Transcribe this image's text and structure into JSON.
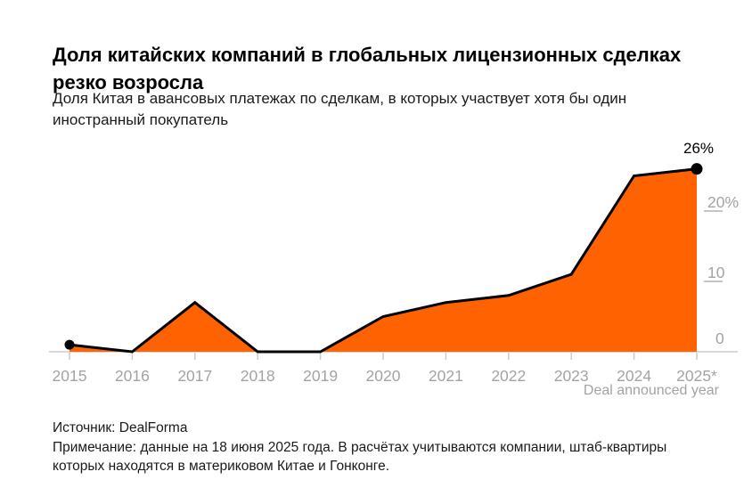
{
  "header": {
    "title": "Доля китайских компаний в глобальных лицензионных сделках резко возросла",
    "subtitle": "Доля Китая в авансовых платежах по сделкам, в которых участвует хотя бы один иностранный покупатель"
  },
  "chart_data": {
    "type": "area",
    "x": [
      "2015",
      "2016",
      "2017",
      "2018",
      "2019",
      "2020",
      "2021",
      "2022",
      "2023",
      "2024",
      "2025*"
    ],
    "values": [
      1,
      0,
      7,
      0,
      0,
      5,
      7,
      8,
      11,
      25,
      26
    ],
    "unit": "%",
    "title": "Доля китайских компаний в глобальных лицензионных сделках резко возросла",
    "xlabel": "Deal announced year",
    "ylabel": "",
    "ylim": [
      0,
      28
    ],
    "yticks": [
      {
        "value": 0,
        "label": "0"
      },
      {
        "value": 10,
        "label": "10"
      },
      {
        "value": 20,
        "label": "20%"
      }
    ],
    "end_label": "26%",
    "markers": [
      "first-point",
      "last-point"
    ],
    "grid": "short right-side tick dashes, no full gridlines",
    "legend": "none",
    "series_color": "#FF6200",
    "line_color": "#000000",
    "axis_color": "#cccccc",
    "tick_dash_color": "#c4c4c4",
    "label_color": "#a3a3a3"
  },
  "footer": {
    "source": "Источник: DealForma",
    "note": "Примечание: данные на 18 июня 2025 года. В расчётах учитываются компании, штаб-квартиры которых находятся в материковом Китае и Гонконге."
  }
}
